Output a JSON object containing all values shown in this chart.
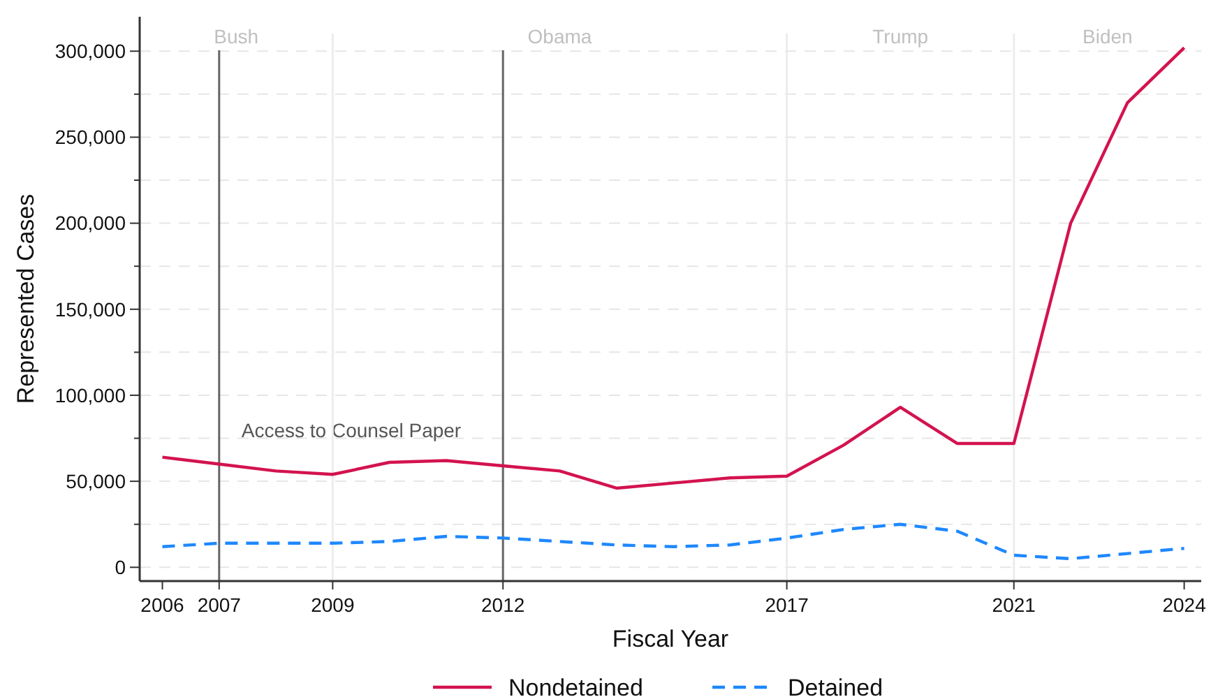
{
  "chart_data": {
    "type": "line",
    "xlabel": "Fiscal Year",
    "ylabel": "Represented Cases",
    "x": [
      2006,
      2007,
      2008,
      2009,
      2010,
      2011,
      2012,
      2013,
      2014,
      2015,
      2016,
      2017,
      2018,
      2019,
      2020,
      2021,
      2022,
      2023,
      2024
    ],
    "series": [
      {
        "name": "Nondetained",
        "color": "#d3134f",
        "line_style": "solid",
        "values": [
          64000,
          60000,
          56000,
          54000,
          61000,
          62000,
          59000,
          56000,
          46000,
          49000,
          52000,
          53000,
          71000,
          93000,
          72000,
          72000,
          200000,
          270000,
          302000
        ]
      },
      {
        "name": "Detained",
        "color": "#1e88ff",
        "line_style": "dashed",
        "values": [
          12000,
          14000,
          14000,
          14000,
          15000,
          18000,
          17000,
          15000,
          13000,
          12000,
          13000,
          17000,
          22000,
          25000,
          21000,
          7000,
          5000,
          8000,
          11000
        ]
      }
    ],
    "xlim": [
      2005.6,
      2024.3
    ],
    "ylim": [
      -8000,
      320000
    ],
    "xticks": [
      2006,
      2007,
      2009,
      2012,
      2017,
      2021,
      2024
    ],
    "yticks": [
      {
        "value": 0,
        "label": "0"
      },
      {
        "value": 25000,
        "label": null
      },
      {
        "value": 50000,
        "label": "50,000"
      },
      {
        "value": 75000,
        "label": null
      },
      {
        "value": 100000,
        "label": "100,000"
      },
      {
        "value": 125000,
        "label": null
      },
      {
        "value": 150000,
        "label": "150,000"
      },
      {
        "value": 175000,
        "label": null
      },
      {
        "value": 200000,
        "label": "200,000"
      },
      {
        "value": 225000,
        "label": null
      },
      {
        "value": 250000,
        "label": "250,000"
      },
      {
        "value": 275000,
        "label": null
      },
      {
        "value": 300000,
        "label": "300,000"
      }
    ],
    "grid": "y",
    "legend": "bottom",
    "marker": "none",
    "ref_lines": [
      {
        "axis": "x",
        "value": 2007,
        "color": "#666666",
        "label": "Access to Counsel Paper"
      },
      {
        "axis": "x",
        "value": 2012,
        "color": "#666666"
      },
      {
        "axis": "x",
        "value": 2009,
        "color": "#ececec"
      },
      {
        "axis": "x",
        "value": 2017,
        "color": "#ececec"
      },
      {
        "axis": "x",
        "value": 2021,
        "color": "#ececec"
      }
    ],
    "annotations": [
      "Bush",
      "Obama",
      "Trump",
      "Biden"
    ]
  }
}
